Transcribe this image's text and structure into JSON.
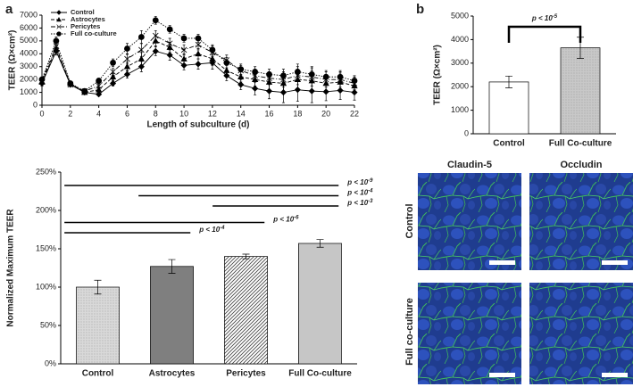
{
  "panel_labels": [
    "a",
    "b"
  ],
  "images": {
    "columns": [
      "Claudin-5",
      "Occludin"
    ],
    "rows": [
      "Control",
      "Full co-culture"
    ]
  },
  "chart_data": [
    {
      "type": "line",
      "xlabel": "Length of subculture (d)",
      "ylabel": "TEER (Ω×cm²)",
      "x": [
        0,
        1,
        2,
        3,
        4,
        5,
        6,
        7,
        8,
        9,
        10,
        11,
        12,
        13,
        14,
        15,
        16,
        17,
        18,
        19,
        20,
        21,
        22
      ],
      "xlim": [
        0,
        22
      ],
      "xticks": [
        0,
        2,
        4,
        6,
        8,
        10,
        12,
        14,
        16,
        18,
        20,
        22
      ],
      "ylim": [
        0,
        7000
      ],
      "yticks": [
        0,
        1000,
        2000,
        3000,
        4000,
        5000,
        6000,
        7000
      ],
      "legend": "upper left",
      "series": [
        {
          "name": "Control",
          "color": "#000000",
          "dash": "none",
          "marker": "diamond",
          "values": [
            1700,
            4200,
            1600,
            1000,
            850,
            1700,
            2400,
            3000,
            4200,
            3900,
            3100,
            3200,
            3300,
            2300,
            1600,
            1300,
            1100,
            1000,
            1200,
            1100,
            1050,
            1150,
            1000
          ],
          "errors": [
            200,
            300,
            150,
            100,
            100,
            200,
            300,
            400,
            350,
            400,
            350,
            400,
            500,
            400,
            400,
            500,
            600,
            800,
            900,
            900,
            700,
            700,
            600
          ]
        },
        {
          "name": "Astrocytes",
          "color": "#000000",
          "dash": "4 2",
          "marker": "triangle",
          "values": [
            1800,
            4400,
            1700,
            1000,
            1200,
            2200,
            3000,
            3600,
            5000,
            4500,
            3600,
            4000,
            3600,
            2700,
            2200,
            2000,
            1800,
            1700,
            2000,
            1900,
            1700,
            1800,
            1500
          ],
          "errors": [
            200,
            300,
            150,
            100,
            150,
            250,
            350,
            500,
            400,
            400,
            400,
            400,
            500,
            400,
            400,
            500,
            600,
            700,
            800,
            800,
            700,
            700,
            600
          ]
        },
        {
          "name": "Pericytes",
          "color": "#000000",
          "dash": "5 2 1 2",
          "marker": "x",
          "values": [
            1900,
            4600,
            1600,
            1100,
            1500,
            2600,
            3600,
            4300,
            5400,
            4800,
            4300,
            4700,
            4100,
            3500,
            2700,
            2300,
            2100,
            2000,
            2300,
            2200,
            2000,
            2000,
            1700
          ],
          "errors": [
            200,
            300,
            150,
            100,
            150,
            250,
            350,
            500,
            400,
            400,
            400,
            400,
            500,
            400,
            400,
            500,
            500,
            600,
            700,
            700,
            600,
            600,
            500
          ]
        },
        {
          "name": "Full co-culture",
          "color": "#000000",
          "dash": "1.5 1.5",
          "marker": "circle",
          "values": [
            2000,
            5000,
            1700,
            1100,
            1900,
            3300,
            4400,
            5300,
            6600,
            5900,
            5200,
            5200,
            4300,
            3300,
            2800,
            2600,
            2400,
            2300,
            2600,
            2400,
            2200,
            2200,
            1900
          ],
          "errors": [
            200,
            300,
            150,
            100,
            200,
            300,
            400,
            500,
            300,
            300,
            300,
            300,
            400,
            400,
            400,
            400,
            400,
            500,
            600,
            600,
            500,
            500,
            400
          ]
        }
      ]
    },
    {
      "type": "bar",
      "ylabel": "Normalized Maximum TEER",
      "categories": [
        "Control",
        "Astrocytes",
        "Pericytes",
        "Full Co-culture"
      ],
      "values": [
        100,
        127,
        140,
        157
      ],
      "errors": [
        9,
        9,
        3,
        5
      ],
      "patterns": [
        "dots",
        "solid",
        "diagonal",
        "vertical"
      ],
      "colors": [
        "#d9d9d9",
        "#7f7f7f",
        "#404040",
        "#404040"
      ],
      "ylim": [
        0,
        250
      ],
      "yticks": [
        {
          "value": 0,
          "label": "0%"
        },
        {
          "value": 50,
          "label": "50%"
        },
        {
          "value": 100,
          "label": "100%"
        },
        {
          "value": 150,
          "label": "150%"
        },
        {
          "value": 200,
          "label": "200%"
        },
        {
          "value": 250,
          "label": "250%"
        }
      ],
      "comparisons": [
        {
          "from": 0,
          "to": 3,
          "label": {
            "text": "p < 10",
            "exp": "-9"
          }
        },
        {
          "from": 1,
          "to": 3,
          "label": {
            "text": "p < 10",
            "exp": "-4"
          }
        },
        {
          "from": 2,
          "to": 3,
          "label": {
            "text": "p < 10",
            "exp": "-3"
          }
        },
        {
          "from": 0,
          "to": 2,
          "label": {
            "text": "p < 10",
            "exp": "-6"
          }
        },
        {
          "from": 0,
          "to": 1,
          "label": {
            "text": "p < 10",
            "exp": "-4"
          }
        }
      ]
    },
    {
      "type": "bar",
      "ylabel": "TEER (Ω×cm²)",
      "categories": [
        "Control",
        "Full Co-culture"
      ],
      "values": [
        2200,
        3650
      ],
      "errors": [
        250,
        450
      ],
      "patterns": [
        "solid",
        "dots"
      ],
      "colors": [
        "#ffffff",
        "#c8c8c8"
      ],
      "ylim": [
        0,
        5000
      ],
      "yticks": [
        0,
        1000,
        2000,
        3000,
        4000,
        5000
      ],
      "comparisons": [
        {
          "from": 0,
          "to": 1,
          "label": {
            "text": "p < 10",
            "exp": "-5"
          }
        }
      ]
    }
  ]
}
